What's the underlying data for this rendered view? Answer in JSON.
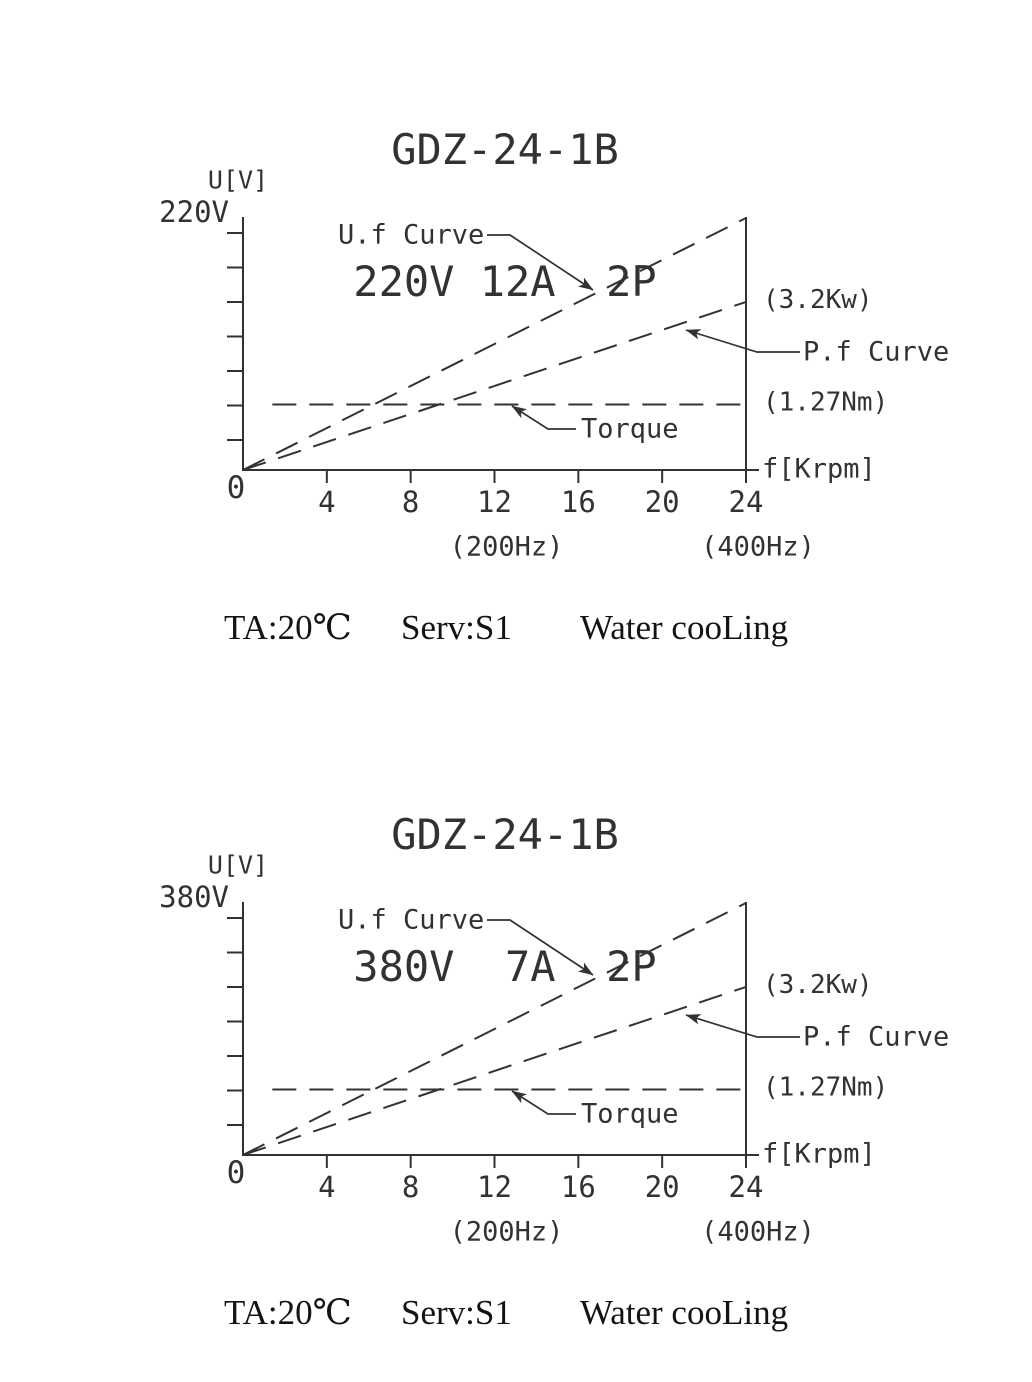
{
  "page": {
    "background": "#ffffff",
    "ink": "#323232",
    "footer_ink": "#141414"
  },
  "chart_data": [
    {
      "type": "line",
      "title_lines": [
        "GDZ-24-1B",
        "220V 12A  2P"
      ],
      "ylabel": "U[V]",
      "y_max_label": "220V",
      "origin_label": "0",
      "xlabel": "f[Krpm]",
      "xlim": [
        0,
        24
      ],
      "ylim_volts": [
        0,
        220
      ],
      "x_ticks": [
        4,
        8,
        12,
        16,
        20,
        24
      ],
      "x_secondary_labels": [
        {
          "tick": 12,
          "label": "(200Hz)"
        },
        {
          "tick": 24,
          "label": "(400Hz)"
        }
      ],
      "y_tick_count": 7,
      "grid": false,
      "legend_position": "inline-callouts",
      "series": [
        {
          "name": "U.f Curve",
          "style": "dashed",
          "x": [
            0,
            24
          ],
          "y_frac": [
            0,
            1.0
          ],
          "end_value_label": ""
        },
        {
          "name": "P.f Curve",
          "style": "dashed",
          "x": [
            0,
            24
          ],
          "y_frac": [
            0,
            0.667
          ],
          "end_value_label": "(3.2Kw)"
        },
        {
          "name": "Torque",
          "style": "dashed",
          "x": [
            1.4,
            24
          ],
          "y_frac": [
            0.26,
            0.26
          ],
          "end_value_label": "(1.27Nm)"
        }
      ],
      "callouts": [
        "U.f Curve",
        "P.f Curve",
        "Torque"
      ],
      "footer_items": [
        "TA:20℃",
        "Serv:S1",
        "Water cooLing"
      ]
    },
    {
      "type": "line",
      "title_lines": [
        "GDZ-24-1B",
        "380V  7A  2P"
      ],
      "ylabel": "U[V]",
      "y_max_label": "380V",
      "origin_label": "0",
      "xlabel": "f[Krpm]",
      "xlim": [
        0,
        24
      ],
      "ylim_volts": [
        0,
        380
      ],
      "x_ticks": [
        4,
        8,
        12,
        16,
        20,
        24
      ],
      "x_secondary_labels": [
        {
          "tick": 12,
          "label": "(200Hz)"
        },
        {
          "tick": 24,
          "label": "(400Hz)"
        }
      ],
      "y_tick_count": 7,
      "grid": false,
      "legend_position": "inline-callouts",
      "series": [
        {
          "name": "U.f Curve",
          "style": "dashed",
          "x": [
            0,
            24
          ],
          "y_frac": [
            0,
            1.0
          ],
          "end_value_label": ""
        },
        {
          "name": "P.f Curve",
          "style": "dashed",
          "x": [
            0,
            24
          ],
          "y_frac": [
            0,
            0.667
          ],
          "end_value_label": "(3.2Kw)"
        },
        {
          "name": "Torque",
          "style": "dashed",
          "x": [
            1.4,
            24
          ],
          "y_frac": [
            0.26,
            0.26
          ],
          "end_value_label": "(1.27Nm)"
        }
      ],
      "callouts": [
        "U.f Curve",
        "P.f Curve",
        "Torque"
      ],
      "footer_items": [
        "TA:20℃",
        "Serv:S1",
        "Water cooLing"
      ]
    }
  ]
}
